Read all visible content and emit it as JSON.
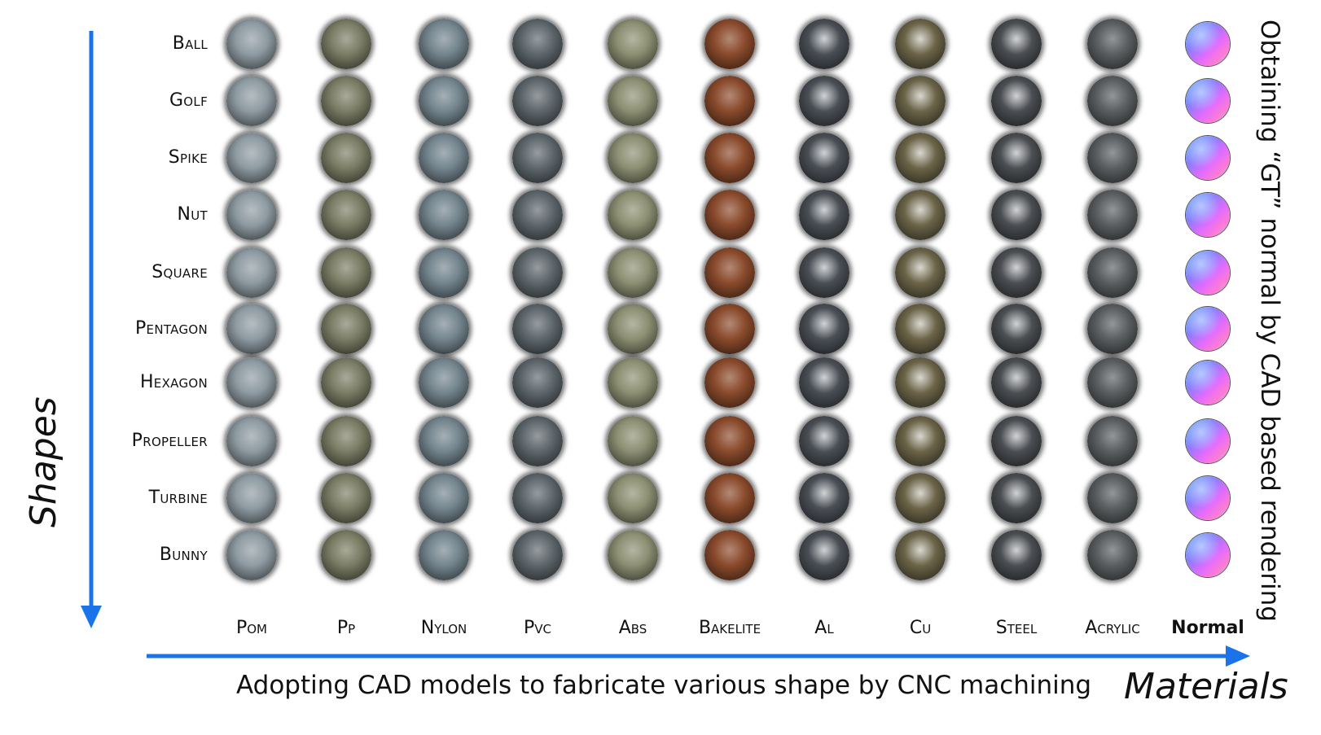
{
  "shapes": [
    "Ball",
    "Golf",
    "Spike",
    "Nut",
    "Square",
    "Pentagon",
    "Hexagon",
    "Propeller",
    "Turbine",
    "Bunny"
  ],
  "materials": [
    {
      "name": "Pom",
      "color": "#8e9ba2"
    },
    {
      "name": "Pp",
      "color": "#7a7c64"
    },
    {
      "name": "Nylon",
      "color": "#74858e"
    },
    {
      "name": "Pvc",
      "color": "#5d666b"
    },
    {
      "name": "Abs",
      "color": "#8c8f72"
    },
    {
      "name": "Bakelite",
      "color": "#8a4a2c"
    },
    {
      "name": "Al",
      "color": "#4a4f55"
    },
    {
      "name": "Cu",
      "color": "#6b6448"
    },
    {
      "name": "Steel",
      "color": "#4b4e52"
    },
    {
      "name": "Acrylic",
      "color": "#5a5e60"
    }
  ],
  "normal_label": "Normal",
  "axis": {
    "vertical_title": "Shapes",
    "horizontal_title": "Materials",
    "arrow_color": "#1a73e8"
  },
  "captions": {
    "bottom": "Adopting CAD models to fabricate various shape by CNC machining",
    "right": "Obtaining “GT” normal by CAD based rendering"
  }
}
